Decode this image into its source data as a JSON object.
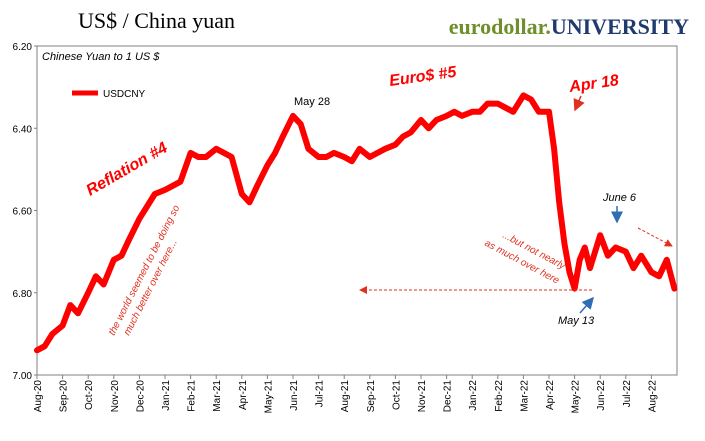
{
  "header": {
    "title": "US$ / China yuan",
    "brand_part1": "eurodollar.",
    "brand_part2": "UNIVERSITY"
  },
  "colors": {
    "series": "#ff0000",
    "annotation": "#e0301e",
    "arrow_blue": "#2e6fb3",
    "brand_green": "#6f8f2a",
    "brand_blue": "#1f3a6e"
  },
  "chart_data": {
    "type": "line",
    "title": "Chinese Yuan to 1 US $",
    "ylabel": "",
    "xlabel": "",
    "y_reversed": true,
    "ylim": [
      6.2,
      7.0
    ],
    "yticks": [
      "6.20",
      "6.40",
      "6.60",
      "6.80",
      "7.00"
    ],
    "xticks": [
      "Aug-20",
      "Sep-20",
      "Oct-20",
      "Nov-20",
      "Dec-20",
      "Jan-21",
      "Feb-21",
      "Mar-21",
      "Apr-21",
      "May-21",
      "Jun-21",
      "Jul-21",
      "Aug-21",
      "Sep-21",
      "Oct-21",
      "Nov-21",
      "Dec-21",
      "Jan-22",
      "Feb-22",
      "Mar-22",
      "Apr-22",
      "May-22",
      "Jun-22",
      "Jul-22",
      "Aug-22"
    ],
    "legend": {
      "label": "USDCNY",
      "placement": "top-left"
    },
    "series": [
      {
        "name": "USDCNY",
        "x": [
          0,
          0.3,
          0.6,
          1,
          1.3,
          1.6,
          2,
          2.3,
          2.6,
          3,
          3.3,
          3.6,
          4,
          4.3,
          4.6,
          5,
          5.3,
          5.6,
          6,
          6.3,
          6.6,
          7,
          7.3,
          7.6,
          8,
          8.3,
          8.6,
          9,
          9.3,
          9.6,
          10,
          10.3,
          10.6,
          11,
          11.3,
          11.6,
          12,
          12.3,
          12.6,
          13,
          13.3,
          13.6,
          14,
          14.3,
          14.6,
          15,
          15.3,
          15.6,
          16,
          16.3,
          16.6,
          17,
          17.3,
          17.6,
          18,
          18.3,
          18.6,
          19,
          19.3,
          19.6,
          20,
          20.2,
          20.4,
          20.6,
          20.8,
          21,
          21.2,
          21.4,
          21.6,
          22,
          22.3,
          22.6,
          23,
          23.3,
          23.6,
          24,
          24.3,
          24.6,
          24.9
        ],
        "y": [
          6.94,
          6.93,
          6.9,
          6.88,
          6.83,
          6.85,
          6.8,
          6.76,
          6.78,
          6.72,
          6.71,
          6.67,
          6.62,
          6.59,
          6.56,
          6.55,
          6.54,
          6.53,
          6.46,
          6.47,
          6.47,
          6.45,
          6.46,
          6.47,
          6.56,
          6.58,
          6.54,
          6.49,
          6.46,
          6.42,
          6.37,
          6.39,
          6.45,
          6.47,
          6.47,
          6.46,
          6.47,
          6.48,
          6.45,
          6.47,
          6.46,
          6.45,
          6.44,
          6.42,
          6.41,
          6.38,
          6.4,
          6.38,
          6.37,
          6.36,
          6.37,
          6.36,
          6.36,
          6.34,
          6.34,
          6.35,
          6.36,
          6.32,
          6.33,
          6.36,
          6.36,
          6.45,
          6.58,
          6.68,
          6.75,
          6.79,
          6.72,
          6.69,
          6.74,
          6.66,
          6.71,
          6.69,
          6.7,
          6.74,
          6.71,
          6.75,
          6.76,
          6.72,
          6.79
        ]
      }
    ],
    "annotations": [
      {
        "text": "May 28"
      },
      {
        "text": "Euro$ #5"
      },
      {
        "text": "Apr 18"
      },
      {
        "text": "Reflation #4"
      },
      {
        "text": "the world seemed to be doing so"
      },
      {
        "text": "much better over here..."
      },
      {
        "text": "...but not nearly"
      },
      {
        "text": "as much over here"
      },
      {
        "text": "June 6"
      },
      {
        "text": "May 13"
      }
    ]
  }
}
